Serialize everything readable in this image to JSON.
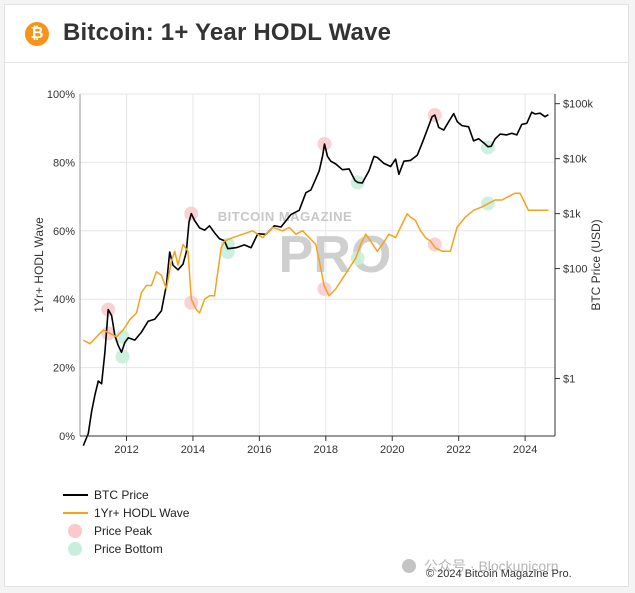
{
  "header": {
    "logo_symbol": "₿",
    "title": "Bitcoin: 1+ Year HODL Wave"
  },
  "colors": {
    "btc": "#000000",
    "hodl": "#f7a21b",
    "peak": "#f9c9cc",
    "bottom": "#c8efdc",
    "brand": "#f7931a"
  },
  "chart_data": {
    "type": "line",
    "left_axis": {
      "label": "1Yr+ HODL Wave",
      "ticks": [
        "0%",
        "20%",
        "40%",
        "60%",
        "80%",
        "100%"
      ],
      "range": [
        0,
        100
      ]
    },
    "right_axis": {
      "label": "BTC Price (USD)",
      "scale": "log",
      "ticks": [
        "$1",
        "$100",
        "$1k",
        "$10k",
        "$100k"
      ],
      "range": [
        0.09,
        150000
      ]
    },
    "x_axis": {
      "ticks": [
        "2012",
        "2014",
        "2016",
        "2018",
        "2020",
        "2022",
        "2024"
      ],
      "range": [
        2010.6,
        2024.9
      ]
    },
    "series": [
      {
        "name": "BTC Price",
        "axis": "right",
        "points": [
          [
            2010.7,
            0.06
          ],
          [
            2010.85,
            0.1
          ],
          [
            2010.95,
            0.25
          ],
          [
            2011.05,
            0.5
          ],
          [
            2011.15,
            0.9
          ],
          [
            2011.25,
            0.8
          ],
          [
            2011.35,
            3
          ],
          [
            2011.45,
            18
          ],
          [
            2011.55,
            14
          ],
          [
            2011.65,
            6
          ],
          [
            2011.75,
            4
          ],
          [
            2011.85,
            3
          ],
          [
            2011.95,
            4.5
          ],
          [
            2012.05,
            5.5
          ],
          [
            2012.25,
            5
          ],
          [
            2012.45,
            7
          ],
          [
            2012.65,
            11
          ],
          [
            2012.85,
            12
          ],
          [
            2013.05,
            17
          ],
          [
            2013.2,
            50
          ],
          [
            2013.3,
            200
          ],
          [
            2013.4,
            115
          ],
          [
            2013.55,
            95
          ],
          [
            2013.7,
            120
          ],
          [
            2013.8,
            200
          ],
          [
            2013.88,
            700
          ],
          [
            2013.95,
            1000
          ],
          [
            2014.05,
            750
          ],
          [
            2014.2,
            550
          ],
          [
            2014.35,
            500
          ],
          [
            2014.5,
            600
          ],
          [
            2014.65,
            450
          ],
          [
            2014.8,
            350
          ],
          [
            2014.95,
            320
          ],
          [
            2015.05,
            230
          ],
          [
            2015.3,
            240
          ],
          [
            2015.55,
            270
          ],
          [
            2015.75,
            240
          ],
          [
            2015.95,
            430
          ],
          [
            2016.2,
            420
          ],
          [
            2016.45,
            600
          ],
          [
            2016.65,
            570
          ],
          [
            2016.95,
            960
          ],
          [
            2017.2,
            1150
          ],
          [
            2017.4,
            2400
          ],
          [
            2017.55,
            2700
          ],
          [
            2017.7,
            4300
          ],
          [
            2017.8,
            6000
          ],
          [
            2017.9,
            11000
          ],
          [
            2017.96,
            18500
          ],
          [
            2018.05,
            11000
          ],
          [
            2018.15,
            9000
          ],
          [
            2018.3,
            8000
          ],
          [
            2018.5,
            6300
          ],
          [
            2018.7,
            6500
          ],
          [
            2018.88,
            4000
          ],
          [
            2018.96,
            3700
          ],
          [
            2019.1,
            3600
          ],
          [
            2019.3,
            6000
          ],
          [
            2019.45,
            11000
          ],
          [
            2019.55,
            10500
          ],
          [
            2019.75,
            8200
          ],
          [
            2019.95,
            7200
          ],
          [
            2020.1,
            9800
          ],
          [
            2020.2,
            5200
          ],
          [
            2020.35,
            9000
          ],
          [
            2020.55,
            9300
          ],
          [
            2020.75,
            11500
          ],
          [
            2020.9,
            19000
          ],
          [
            2021.05,
            33000
          ],
          [
            2021.2,
            58000
          ],
          [
            2021.28,
            62000
          ],
          [
            2021.4,
            37000
          ],
          [
            2021.55,
            33000
          ],
          [
            2021.7,
            47000
          ],
          [
            2021.85,
            66000
          ],
          [
            2021.96,
            47000
          ],
          [
            2022.1,
            40000
          ],
          [
            2022.3,
            38000
          ],
          [
            2022.45,
            21000
          ],
          [
            2022.6,
            23000
          ],
          [
            2022.75,
            19500
          ],
          [
            2022.88,
            16500
          ],
          [
            2022.98,
            16800
          ],
          [
            2023.1,
            23000
          ],
          [
            2023.25,
            28000
          ],
          [
            2023.45,
            27000
          ],
          [
            2023.6,
            29000
          ],
          [
            2023.75,
            27000
          ],
          [
            2023.9,
            42000
          ],
          [
            2024.05,
            44000
          ],
          [
            2024.2,
            70000
          ],
          [
            2024.3,
            65000
          ],
          [
            2024.45,
            67000
          ],
          [
            2024.6,
            58000
          ],
          [
            2024.7,
            63000
          ]
        ]
      },
      {
        "name": "1Yr+ HODL Wave",
        "axis": "left",
        "points": [
          [
            2010.7,
            28
          ],
          [
            2010.9,
            27
          ],
          [
            2011.1,
            29
          ],
          [
            2011.3,
            31
          ],
          [
            2011.5,
            30
          ],
          [
            2011.7,
            29
          ],
          [
            2011.9,
            31
          ],
          [
            2012.1,
            34
          ],
          [
            2012.3,
            36
          ],
          [
            2012.45,
            42
          ],
          [
            2012.6,
            44
          ],
          [
            2012.75,
            44
          ],
          [
            2012.9,
            48
          ],
          [
            2013.05,
            47
          ],
          [
            2013.2,
            43
          ],
          [
            2013.35,
            51
          ],
          [
            2013.45,
            54
          ],
          [
            2013.55,
            50
          ],
          [
            2013.7,
            56
          ],
          [
            2013.85,
            54
          ],
          [
            2013.95,
            40
          ],
          [
            2014.1,
            37
          ],
          [
            2014.2,
            36
          ],
          [
            2014.35,
            40
          ],
          [
            2014.5,
            41
          ],
          [
            2014.65,
            41
          ],
          [
            2014.75,
            48
          ],
          [
            2014.85,
            55
          ],
          [
            2014.95,
            57
          ],
          [
            2015.2,
            58
          ],
          [
            2015.5,
            59
          ],
          [
            2015.8,
            60
          ],
          [
            2016.1,
            58
          ],
          [
            2016.4,
            61
          ],
          [
            2016.7,
            60
          ],
          [
            2016.9,
            61
          ],
          [
            2017.1,
            59
          ],
          [
            2017.3,
            60
          ],
          [
            2017.5,
            58
          ],
          [
            2017.7,
            56
          ],
          [
            2017.85,
            49
          ],
          [
            2017.95,
            44
          ],
          [
            2018.1,
            41
          ],
          [
            2018.3,
            43
          ],
          [
            2018.5,
            46
          ],
          [
            2018.7,
            49
          ],
          [
            2018.9,
            52
          ],
          [
            2019.05,
            56
          ],
          [
            2019.2,
            59
          ],
          [
            2019.35,
            57
          ],
          [
            2019.55,
            54
          ],
          [
            2019.7,
            56
          ],
          [
            2019.9,
            59
          ],
          [
            2020.1,
            58
          ],
          [
            2020.3,
            62
          ],
          [
            2020.45,
            65
          ],
          [
            2020.55,
            64
          ],
          [
            2020.7,
            63
          ],
          [
            2020.85,
            60
          ],
          [
            2021.0,
            58
          ],
          [
            2021.15,
            57
          ],
          [
            2021.3,
            55
          ],
          [
            2021.5,
            54
          ],
          [
            2021.75,
            54
          ],
          [
            2021.95,
            61
          ],
          [
            2022.2,
            64
          ],
          [
            2022.45,
            66
          ],
          [
            2022.7,
            67
          ],
          [
            2022.9,
            68
          ],
          [
            2023.1,
            69
          ],
          [
            2023.3,
            69
          ],
          [
            2023.5,
            70
          ],
          [
            2023.7,
            71
          ],
          [
            2023.85,
            71
          ],
          [
            2023.95,
            69
          ],
          [
            2024.1,
            66
          ],
          [
            2024.3,
            66
          ],
          [
            2024.5,
            66
          ],
          [
            2024.7,
            66
          ]
        ]
      }
    ],
    "price_peaks": [
      [
        2011.45,
        18
      ],
      [
        2013.95,
        1000
      ],
      [
        2017.96,
        18500
      ],
      [
        2021.28,
        62000
      ]
    ],
    "price_bottoms": [
      [
        2011.88,
        2.5
      ],
      [
        2015.05,
        200
      ],
      [
        2018.96,
        3700
      ],
      [
        2022.88,
        16000
      ]
    ],
    "hodl_peak_markers": [
      [
        2011.45,
        30
      ],
      [
        2013.95,
        39
      ],
      [
        2017.96,
        43
      ],
      [
        2021.28,
        56
      ]
    ],
    "hodl_bottom_markers": [
      [
        2011.88,
        29
      ],
      [
        2015.05,
        56
      ],
      [
        2018.96,
        52
      ],
      [
        2022.88,
        68
      ]
    ],
    "legend": [
      {
        "label": "BTC Price",
        "kind": "line-black"
      },
      {
        "label": "1Yr+ HODL Wave",
        "kind": "line-orange"
      },
      {
        "label": "Price Peak",
        "kind": "dot-peak"
      },
      {
        "label": "Price Bottom",
        "kind": "dot-bottom"
      }
    ],
    "watermark": {
      "small": "BITCOIN MAGAZINE",
      "big": "PRO"
    },
    "copyright": "© 2024 Bitcoin Magazine Pro.",
    "wechat_overlay": "公众号 · Blockunicorn"
  }
}
